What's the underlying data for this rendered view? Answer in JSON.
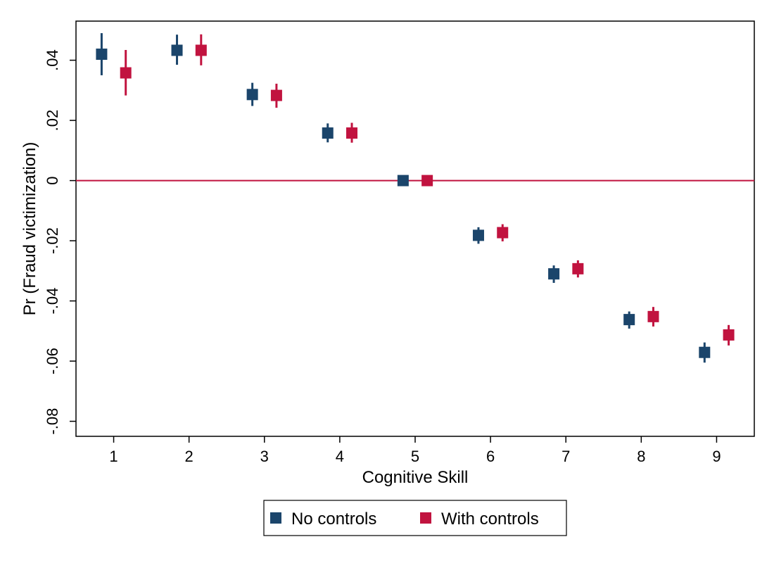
{
  "chart_data": {
    "type": "scatter",
    "subtype": "coefficient plot with confidence intervals",
    "title": "",
    "xlabel": "Cognitive Skill",
    "ylabel": "Pr (Fraud victimization)",
    "x_ticks": [
      1,
      2,
      3,
      4,
      5,
      6,
      7,
      8,
      9
    ],
    "y_ticks": [
      -0.08,
      -0.06,
      -0.04,
      -0.02,
      0,
      0.02,
      0.04
    ],
    "y_tick_labels": [
      "-.08",
      "-.06",
      "-.04",
      "-.02",
      "0",
      ".02",
      ".04"
    ],
    "x_tick_labels": [
      "1",
      "2",
      "3",
      "4",
      "5",
      "6",
      "7",
      "8",
      "9"
    ],
    "xlim": [
      0.5,
      9.5
    ],
    "ylim": [
      -0.085,
      0.053
    ],
    "reference_line": {
      "y": 0,
      "color": "#c1133f"
    },
    "grid": false,
    "legend_position": "bottom",
    "series": [
      {
        "name": "No controls",
        "color": "#1b456b",
        "offset": -0.16,
        "x": [
          1,
          2,
          3,
          4,
          5,
          6,
          7,
          8,
          9
        ],
        "values": [
          0.042,
          0.0433,
          0.0286,
          0.0158,
          0.0,
          -0.0182,
          -0.031,
          -0.0462,
          -0.0571
        ],
        "ci_low": [
          0.035,
          0.0385,
          0.0248,
          0.0127,
          0.0,
          -0.021,
          -0.034,
          -0.0492,
          -0.0605
        ],
        "ci_high": [
          0.049,
          0.0485,
          0.0325,
          0.019,
          0.0,
          -0.0155,
          -0.0282,
          -0.0435,
          -0.0538
        ]
      },
      {
        "name": "With controls",
        "color": "#c1133f",
        "offset": 0.16,
        "x": [
          1,
          2,
          3,
          4,
          5,
          6,
          7,
          8,
          9
        ],
        "values": [
          0.0358,
          0.0433,
          0.0283,
          0.0158,
          0.0,
          -0.0173,
          -0.0293,
          -0.0452,
          -0.0513
        ],
        "ci_low": [
          0.0283,
          0.0383,
          0.0242,
          0.0126,
          0.0,
          -0.0202,
          -0.0322,
          -0.0485,
          -0.0548
        ],
        "ci_high": [
          0.0434,
          0.0486,
          0.0322,
          0.0192,
          0.0,
          -0.0145,
          -0.0265,
          -0.042,
          -0.048
        ]
      }
    ]
  }
}
